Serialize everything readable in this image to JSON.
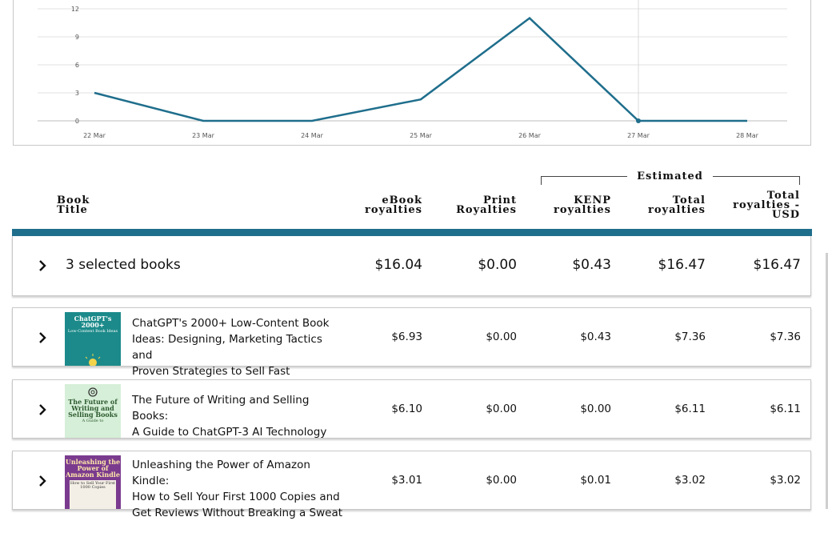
{
  "chart": {
    "y_ticks": [
      "12",
      "9",
      "6",
      "3",
      "0"
    ],
    "x_ticks": [
      "22 Mar",
      "23 Mar",
      "24 Mar",
      "25 Mar",
      "26 Mar",
      "27 Mar",
      "28 Mar"
    ],
    "line_color": "#1f6e8c"
  },
  "chart_data": {
    "type": "line",
    "x": [
      "22 Mar",
      "23 Mar",
      "24 Mar",
      "25 Mar",
      "26 Mar",
      "27 Mar",
      "28 Mar"
    ],
    "series": [
      {
        "values": [
          3,
          0,
          0,
          2.3,
          11,
          0,
          0
        ]
      }
    ],
    "ylim": [
      0,
      12
    ],
    "y_ticks": [
      0,
      3,
      6,
      9,
      12
    ],
    "grid": true,
    "highlighted_x": "27 Mar"
  },
  "table_header": {
    "book_title": "Book Title",
    "ebook": "eBook royalties",
    "print": "Print Royalties",
    "estimated": "Estimated",
    "kenp": "KENP royalties",
    "total": "Total royalties",
    "total_usd": "Total royalties - USD"
  },
  "summary": {
    "label": "3 selected books",
    "ebook": "$16.04",
    "print": "$0.00",
    "kenp": "$0.43",
    "total": "$16.47",
    "total_usd": "$16.47"
  },
  "books": [
    {
      "title": [
        "ChatGPT's 2000+ Low-Content Book",
        "Ideas: Designing, Marketing Tactics and",
        "Proven Strategies to Sell Fast"
      ],
      "ebook": "$6.93",
      "print": "$0.00",
      "kenp": "$0.43",
      "total": "$7.36",
      "total_usd": "$7.36",
      "cover": {
        "title": "ChatGPT's 2000+",
        "subtitle": "Low-Content Book Ideas",
        "bg": "#1c8a8a",
        "fg": "#ffffff"
      }
    },
    {
      "title": [
        "The Future of Writing and Selling Books:",
        "A Guide to ChatGPT-3 AI Technology"
      ],
      "ebook": "$6.10",
      "print": "$0.00",
      "kenp": "$0.00",
      "total": "$6.11",
      "total_usd": "$6.11",
      "cover": {
        "title": "The Future of Writing and Selling Books",
        "subtitle": "A Guide to",
        "bg": "#d6efd8",
        "fg": "#2c5a2e"
      }
    },
    {
      "title": [
        "Unleashing the Power of Amazon Kindle:",
        "How to Sell Your First 1000 Copies and",
        "Get Reviews Without Breaking a Sweat"
      ],
      "ebook": "$3.01",
      "print": "$0.00",
      "kenp": "$0.01",
      "total": "$3.02",
      "total_usd": "$3.02",
      "cover": {
        "title": "Unleashing the Power of Amazon Kindle",
        "subtitle": "How to Sell Your First 1000 Copies",
        "bg": "#7a3b8f",
        "fg": "#ffe9a8"
      }
    }
  ]
}
